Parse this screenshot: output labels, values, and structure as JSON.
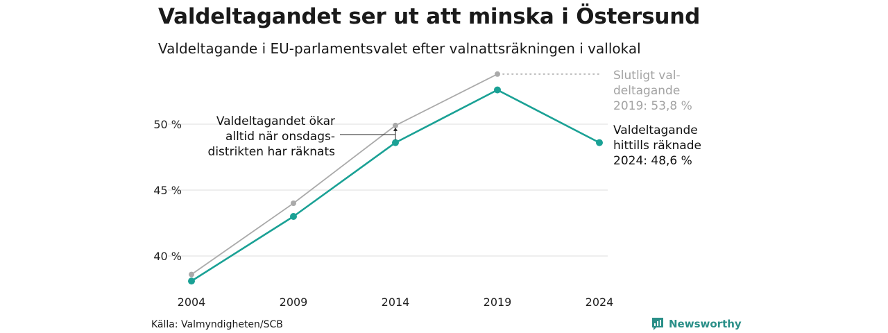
{
  "header": {
    "title": "Valdeltagandet ser ut att minska i Östersund",
    "subtitle": "Valdeltagande i EU-parlamentsvalet efter valnattsräkningen i vallokal"
  },
  "chart_data": {
    "type": "line",
    "x": [
      "2004",
      "2009",
      "2014",
      "2019",
      "2024"
    ],
    "yticks": [
      40,
      45,
      50
    ],
    "ytick_labels": [
      "40 %",
      "45 %",
      "50 %"
    ],
    "ylim": [
      37,
      55
    ],
    "grid": true,
    "series": [
      {
        "key": "final",
        "values": [
          38.6,
          44.0,
          49.9,
          53.8,
          null
        ],
        "color": "#aaaaaa"
      },
      {
        "key": "count",
        "values": [
          38.1,
          43.0,
          48.6,
          52.6,
          48.6
        ],
        "color": "#1aa195"
      }
    ],
    "annotations": {
      "wednesday": [
        "Valdeltagandet ökar",
        "alltid när onsdags-",
        "distrikten har räknats"
      ],
      "final_2019": [
        "Slutligt val-",
        "deltagande",
        "2019: 53,8 %"
      ],
      "count_2024": [
        "Valdeltagande",
        "hittills räknade",
        "2024: 48,6 %"
      ]
    }
  },
  "footer": {
    "source": "Källa: Valmyndigheten/SCB",
    "brand": "Newsworthy",
    "brand_color": "#2a8f88"
  }
}
